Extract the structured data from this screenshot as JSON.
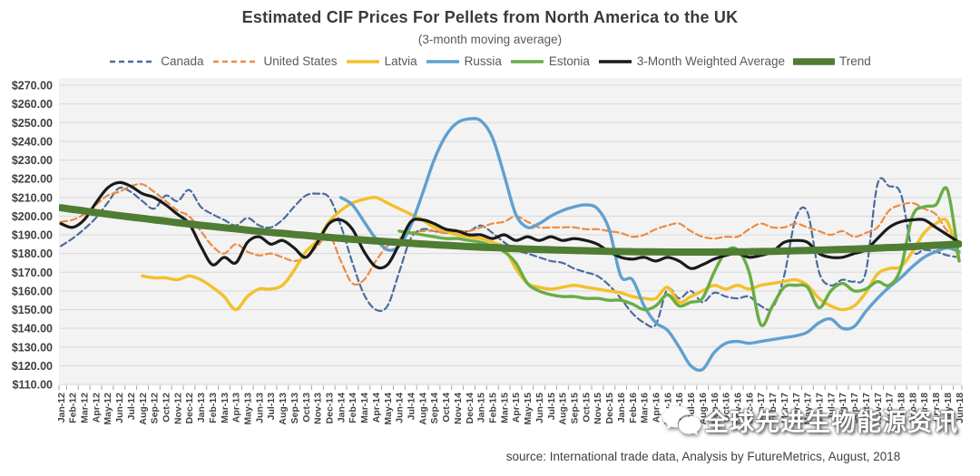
{
  "title": "Estimated CIF Prices For Pellets from North America to the UK",
  "subtitle": "(3-month moving average)",
  "source": "source: International trade data, Analysis by FutureMetrics, August, 2018",
  "watermark": {
    "text": "全球先进生物能源资讯",
    "icon": "chat-bubbles-logo"
  },
  "chart_data": {
    "type": "line",
    "title": "Estimated CIF Prices For Pellets from North America to the UK",
    "subtitle": "(3-month moving average)",
    "xlabel": "",
    "ylabel": "",
    "ylim": [
      110,
      270
    ],
    "grid": "horizontal",
    "legend_position": "top",
    "y_ticks": [
      "$270.00",
      "$260.00",
      "$250.00",
      "$240.00",
      "$230.00",
      "$220.00",
      "$210.00",
      "$200.00",
      "$190.00",
      "$180.00",
      "$170.00",
      "$160.00",
      "$150.00",
      "$140.00",
      "$130.00",
      "$120.00",
      "$110.00"
    ],
    "months": [
      "Jan-12",
      "Feb-12",
      "Mar-12",
      "Apr-12",
      "May-12",
      "Jun-12",
      "Jul-12",
      "Aug-12",
      "Sep-12",
      "Oct-12",
      "Nov-12",
      "Dec-12",
      "Jan-13",
      "Feb-13",
      "Mar-13",
      "Apr-13",
      "May-13",
      "Jun-13",
      "Jul-13",
      "Aug-13",
      "Sep-13",
      "Oct-13",
      "Nov-13",
      "Dec-13",
      "Jan-14",
      "Feb-14",
      "Mar-14",
      "Apr-14",
      "May-14",
      "Jun-14",
      "Jul-14",
      "Aug-14",
      "Sep-14",
      "Oct-14",
      "Nov-14",
      "Dec-14",
      "Jan-15",
      "Feb-15",
      "Mar-15",
      "Apr-15",
      "May-15",
      "Jun-15",
      "Jul-15",
      "Aug-15",
      "Sep-15",
      "Oct-15",
      "Nov-15",
      "Dec-15",
      "Jan-16",
      "Feb-16",
      "Mar-16",
      "Apr-16",
      "May-16",
      "Jun-16",
      "Jul-16",
      "Aug-16",
      "Sep-16",
      "Oct-16",
      "Nov-16",
      "Dec-16",
      "Jan-17",
      "Feb-17",
      "Mar-17",
      "Apr-17",
      "May-17",
      "Jun-17",
      "Jul-17",
      "Aug-17",
      "Sep-17",
      "Oct-17",
      "Nov-17",
      "Dec-17",
      "Jan-18",
      "Feb-18",
      "Mar-18",
      "Apr-18",
      "May-18",
      "Jun-18"
    ],
    "series": [
      {
        "name": "Canada",
        "color": "#4c6c9c",
        "dash": true,
        "width": 2.2,
        "values": [
          184,
          188,
          193,
          199,
          207,
          215,
          213,
          208,
          204,
          211,
          208,
          214,
          205,
          201,
          198,
          195,
          199,
          195,
          194,
          198,
          205,
          211,
          212,
          210,
          195,
          175,
          158,
          150,
          152,
          170,
          188,
          193,
          192,
          191,
          192,
          192,
          195,
          191,
          186,
          182,
          180,
          178,
          176,
          175,
          172,
          170,
          168,
          163,
          156,
          148,
          143,
          142,
          161,
          156,
          160,
          154,
          159,
          157,
          156,
          157,
          152,
          151,
          168,
          199,
          202,
          170,
          163,
          166,
          165,
          170,
          217,
          216,
          212,
          182,
          182,
          181,
          179,
          178
        ]
      },
      {
        "name": "United States",
        "color": "#ED8B42",
        "dash": true,
        "width": 2.2,
        "values": [
          197,
          198,
          201,
          206,
          211,
          213,
          216,
          217,
          213,
          208,
          203,
          200,
          192,
          184,
          180,
          185,
          181,
          179,
          180,
          178,
          176,
          178,
          184,
          190,
          176,
          164,
          166,
          176,
          184,
          188,
          191,
          192,
          192,
          191,
          192,
          192,
          194,
          196,
          197,
          200,
          197,
          194,
          194,
          194,
          194,
          193,
          193,
          192,
          191,
          189,
          190,
          193,
          195,
          196,
          192,
          189,
          188,
          189,
          189,
          193,
          196,
          194,
          194,
          196,
          194,
          192,
          190,
          192,
          189,
          191,
          194,
          203,
          206,
          207,
          204,
          201,
          192,
          189
        ]
      },
      {
        "name": "Latvia",
        "color": "#F2C029",
        "dash": false,
        "width": 3.4,
        "values": [
          null,
          null,
          null,
          null,
          null,
          null,
          null,
          168,
          167,
          167,
          166,
          168,
          166,
          162,
          157,
          150,
          157,
          161,
          161,
          163,
          171,
          181,
          187,
          197,
          203,
          207,
          209,
          210,
          207,
          204,
          201,
          198,
          194,
          192,
          190,
          189,
          188,
          186,
          183,
          172,
          164,
          162,
          161,
          162,
          163,
          162,
          161,
          160,
          159,
          157,
          156,
          156,
          162,
          154,
          157,
          160,
          163,
          161,
          163,
          161,
          163,
          164,
          165,
          166,
          163,
          156,
          152,
          150,
          152,
          159,
          169,
          172,
          173,
          181,
          191,
          196,
          197,
          176
        ]
      },
      {
        "name": "Russia",
        "color": "#5FA0D0",
        "dash": false,
        "width": 3.4,
        "values": [
          null,
          null,
          null,
          null,
          null,
          null,
          null,
          null,
          null,
          null,
          null,
          null,
          null,
          null,
          null,
          null,
          null,
          null,
          null,
          null,
          null,
          null,
          null,
          null,
          210,
          206,
          197,
          188,
          182,
          184,
          195,
          212,
          230,
          243,
          250,
          252,
          251,
          242,
          222,
          201,
          194,
          196,
          200,
          203,
          205,
          206,
          204,
          193,
          168,
          166,
          152,
          143,
          139,
          130,
          120,
          118,
          127,
          132,
          133,
          132,
          133,
          134,
          135,
          136,
          138,
          143,
          145,
          140,
          141,
          149,
          156,
          162,
          167,
          173,
          178,
          181,
          183,
          181
        ]
      },
      {
        "name": "Estonia",
        "color": "#69AD45",
        "dash": false,
        "width": 3.4,
        "values": [
          null,
          null,
          null,
          null,
          null,
          null,
          null,
          null,
          null,
          null,
          null,
          null,
          null,
          null,
          null,
          null,
          null,
          null,
          null,
          null,
          null,
          null,
          null,
          null,
          null,
          null,
          null,
          null,
          null,
          192,
          191,
          190,
          189,
          188,
          188,
          187,
          186,
          184,
          181,
          175,
          164,
          160,
          158,
          157,
          157,
          156,
          156,
          155,
          155,
          153,
          150,
          152,
          158,
          152,
          154,
          156,
          170,
          181,
          182,
          170,
          142,
          152,
          162,
          163,
          162,
          151,
          160,
          164,
          160,
          161,
          165,
          163,
          172,
          200,
          205,
          206,
          214,
          176
        ]
      },
      {
        "name": "3-Month Weighted Average",
        "color": "#1a1a1a",
        "dash": false,
        "width": 3.2,
        "values": [
          196,
          194,
          198,
          207,
          215,
          218,
          216,
          212,
          210,
          206,
          201,
          196,
          184,
          174,
          178,
          175,
          186,
          189,
          185,
          187,
          183,
          178,
          186,
          196,
          198,
          193,
          181,
          173,
          174,
          185,
          197,
          198,
          196,
          193,
          192,
          190,
          190,
          188,
          190,
          187,
          189,
          187,
          189,
          187,
          188,
          187,
          185,
          181,
          178,
          177,
          178,
          176,
          178,
          176,
          172,
          174,
          177,
          179,
          180,
          178,
          179,
          181,
          186,
          187,
          186,
          180,
          178,
          178,
          180,
          182,
          188,
          194,
          197,
          198,
          198,
          194,
          190,
          186
        ]
      },
      {
        "name": "Trend",
        "color": "#4F7D33",
        "dash": false,
        "width": 8,
        "values": [
          204.5,
          203.6,
          202.8,
          201.9,
          201.1,
          200.3,
          199.5,
          198.8,
          198.0,
          197.3,
          196.5,
          195.8,
          195.1,
          194.5,
          193.8,
          193.2,
          192.5,
          191.9,
          191.3,
          190.8,
          190.2,
          189.7,
          189.1,
          188.6,
          188.1,
          187.6,
          187.2,
          186.7,
          186.3,
          185.9,
          185.5,
          185.1,
          184.7,
          184.4,
          184.1,
          183.7,
          183.4,
          183.2,
          182.9,
          182.6,
          182.4,
          182.2,
          182.0,
          181.8,
          181.6,
          181.5,
          181.3,
          181.2,
          181.1,
          181.0,
          180.9,
          180.9,
          180.8,
          180.8,
          180.8,
          180.8,
          180.8,
          180.9,
          180.9,
          181.0,
          181.1,
          181.2,
          181.3,
          181.5,
          181.6,
          181.8,
          182.0,
          182.2,
          182.4,
          182.6,
          182.9,
          183.2,
          183.4,
          183.7,
          184.1,
          184.4,
          184.7,
          185.1
        ]
      }
    ],
    "plot_style": {
      "bg": "#f3f3f3",
      "gridline": "#d9d9d9",
      "tick": "#a6a6a6",
      "label": "#404040"
    }
  }
}
